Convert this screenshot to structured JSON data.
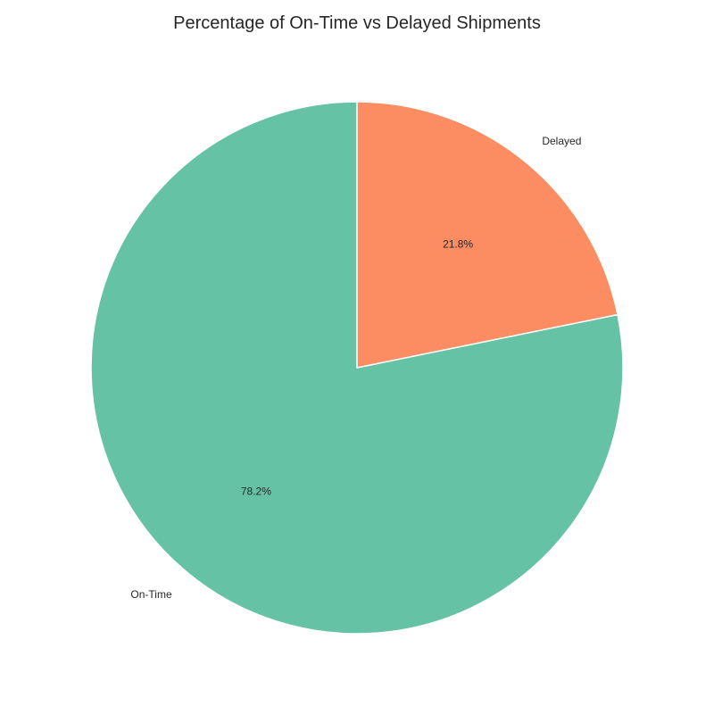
{
  "chart_data": {
    "type": "pie",
    "title": "Percentage of On-Time vs Delayed Shipments",
    "start_angle": 90,
    "direction": "counterclockwise",
    "slices": [
      {
        "label": "On-Time",
        "value": 78.2,
        "value_label": "78.2%",
        "color": "#66c2a5"
      },
      {
        "label": "Delayed",
        "value": 21.8,
        "value_label": "21.8%",
        "color": "#fc8d62"
      }
    ],
    "edge_color": "#ffffff",
    "legend": "none"
  }
}
